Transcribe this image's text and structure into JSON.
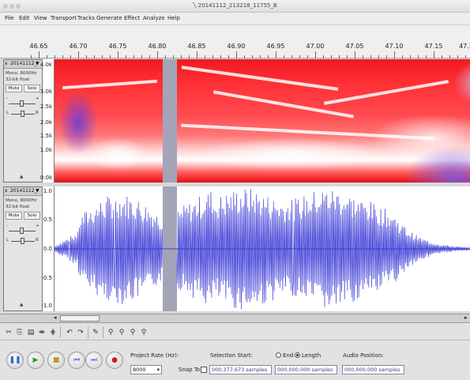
{
  "window": {
    "title": "20141112_213218_11755_B"
  },
  "menu": [
    "File",
    "Edit",
    "View",
    "Transport",
    "Tracks",
    "Generate",
    "Effect",
    "Analyze",
    "Help"
  ],
  "ruler": {
    "labels": [
      "46.65",
      "46.70",
      "46.75",
      "46.80",
      "46.85",
      "46.90",
      "46.95",
      "47.00",
      "47.05",
      "47.10",
      "47.15",
      "47.2"
    ]
  },
  "track1": {
    "name": "20141112_",
    "dropdown_icon": "triangle-down",
    "info1": "Mono, 8000Hz",
    "info2": "32-bit float",
    "mute": "Mute",
    "solo": "Solo",
    "gain_left": "-",
    "gain_right": "+",
    "pan_left": "L",
    "pan_right": "R",
    "scale": [
      "4.0k",
      "3.0k",
      "2.5k",
      "2.0k",
      "1.5k",
      "1.0k",
      "0.0k"
    ]
  },
  "track2": {
    "name": "20141112_",
    "dropdown_icon": "triangle-down",
    "info1": "Mono, 8000Hz",
    "info2": "32-bit float",
    "mute": "Mute",
    "solo": "Solo",
    "gain_left": "-",
    "gain_right": "+",
    "pan_left": "L",
    "pan_right": "R",
    "scale": [
      "1.0",
      "0.5",
      "0.0",
      "-0.5",
      "-1.0"
    ]
  },
  "bottom": {
    "project_rate_label": "Project Rate (Hz):",
    "project_rate_value": "8000",
    "snap_to_label": "Snap To",
    "selection_start_label": "Selection Start:",
    "end_label": "End",
    "length_label": "Length",
    "audio_position_label": "Audio Position:",
    "selection_start_value": "000,377,673 samples",
    "length_value": "000,000,000 samples",
    "audio_position_value": "000,000,000 samples"
  },
  "colors": {
    "waveform": "#3b3bd6",
    "spectro_hot": "#ff2a2a",
    "selection": "#a4a4b8"
  }
}
